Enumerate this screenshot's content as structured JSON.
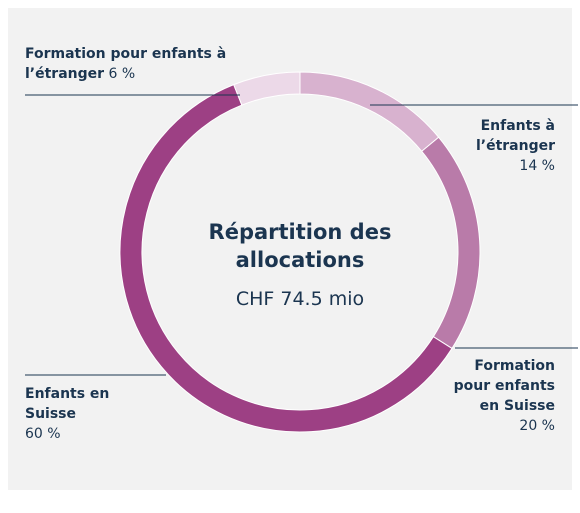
{
  "chart_data": {
    "type": "donut",
    "title": "Répartition des allocations",
    "subtitle": "CHF 74.5 mio",
    "categories": [
      "Enfants à l’étranger",
      "Formation pour enfants en Suisse",
      "Enfants en Suisse",
      "Formation pour enfants à l’étranger"
    ],
    "values": [
      14,
      20,
      60,
      6
    ],
    "value_labels": [
      "14 %",
      "20 %",
      "60 %",
      "6 %"
    ],
    "colors": [
      "#d8b2cf",
      "#b97ba9",
      "#9d4084",
      "#ecd9e8"
    ]
  }
}
